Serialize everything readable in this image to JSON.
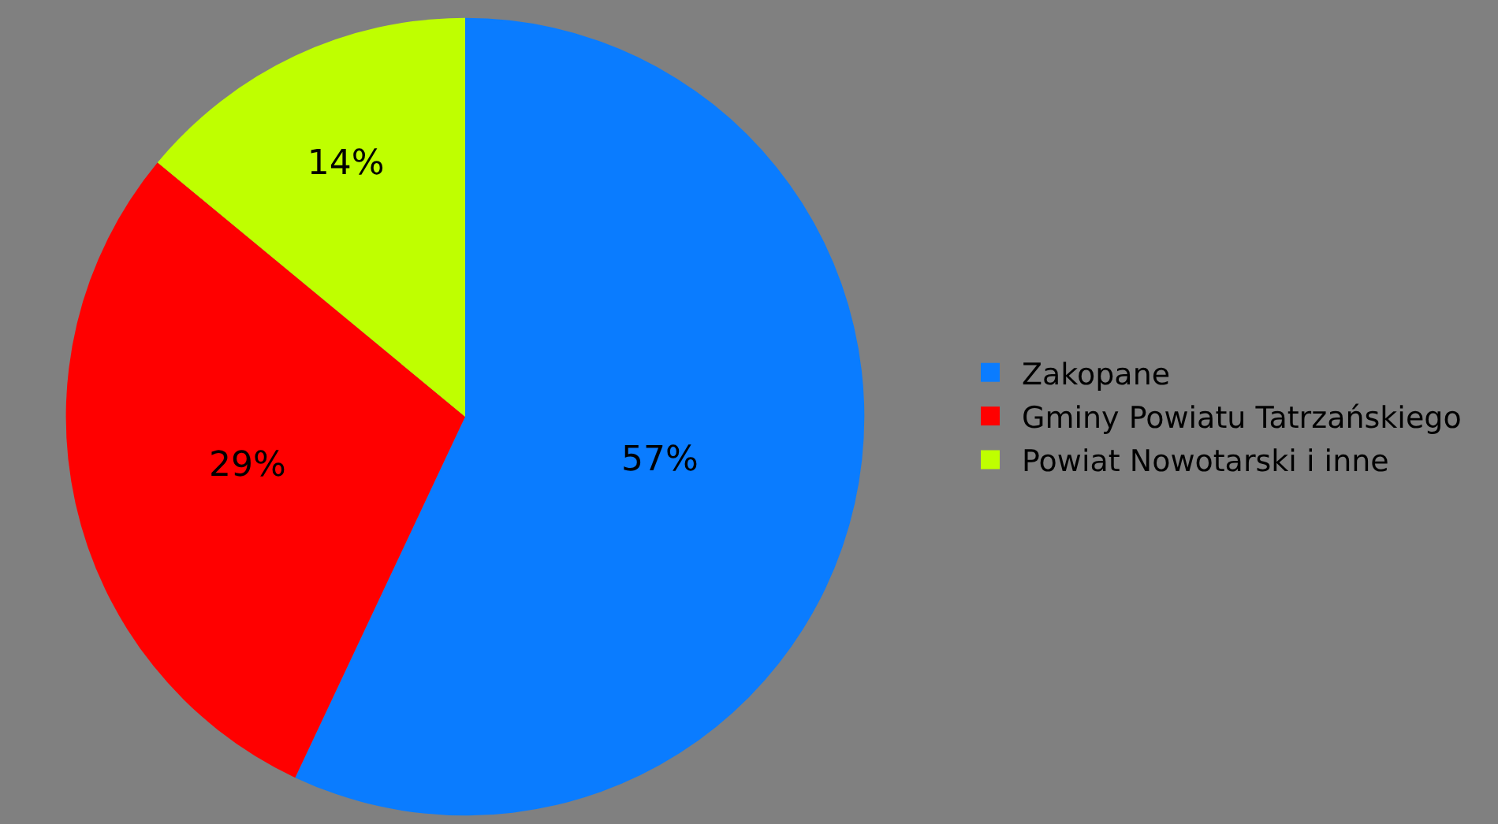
{
  "chart_data": {
    "type": "pie",
    "categories": [
      "Zakopane",
      "Gminy Powiatu Tatrzańskiego",
      "Powiat Nowotarski i inne"
    ],
    "values": [
      57,
      29,
      14
    ],
    "colors": [
      "#0a7cff",
      "#ff0000",
      "#bfff00"
    ],
    "value_labels": [
      "57%",
      "29%",
      "14%"
    ],
    "legend": "right"
  }
}
